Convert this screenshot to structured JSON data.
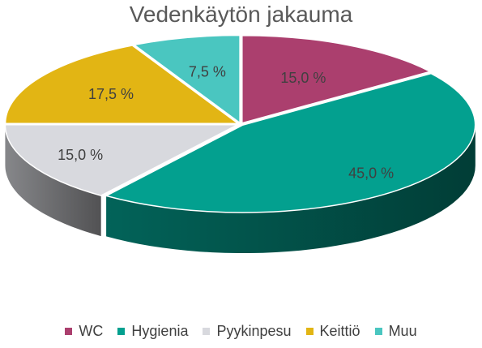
{
  "chart_data": {
    "type": "pie",
    "title": "Vedenkäytön jakauma",
    "categories": [
      "WC",
      "Hygienia",
      "Pyykinpesu",
      "Keittiö",
      "Muu"
    ],
    "values": [
      15.0,
      45.0,
      15.0,
      17.5,
      7.5
    ],
    "labels": [
      "15,0 %",
      "45,0 %",
      "15,0 %",
      "17,5 %",
      "7,5 %"
    ],
    "colors": [
      "#ab3f6e",
      "#03a08f",
      "#d8d9de",
      "#e2b514",
      "#4ac6c0"
    ],
    "legend_position": "bottom",
    "style": "3d-exploded"
  }
}
